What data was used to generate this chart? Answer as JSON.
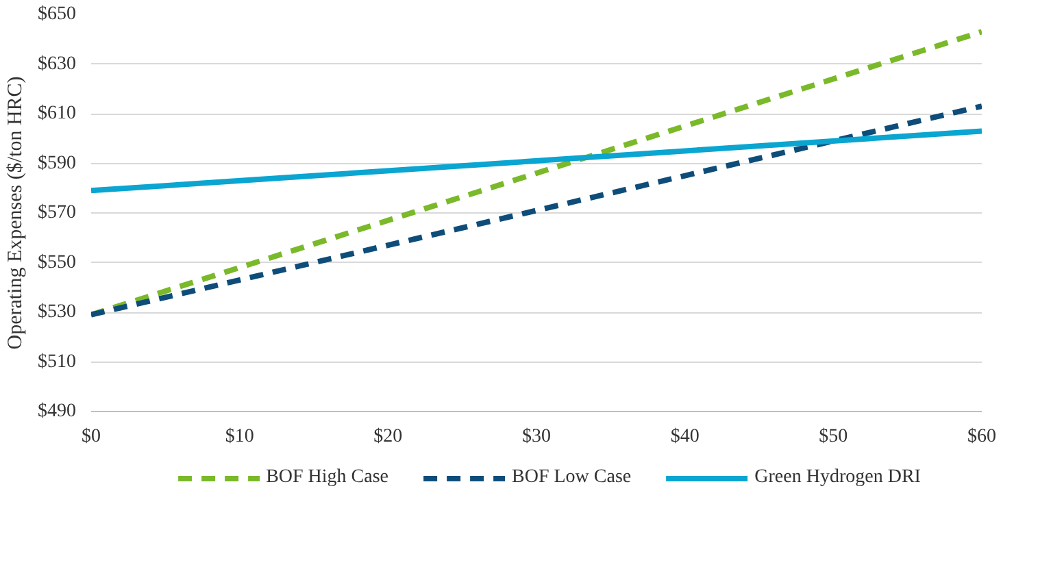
{
  "chart_data": {
    "type": "line",
    "ylabel": "Operating Expenses ($/ton HRC)",
    "x": [
      0,
      60
    ],
    "series": [
      {
        "name": "BOF High Case",
        "color": "#7ab929",
        "values": [
          529,
          643
        ],
        "line_style": "dashed"
      },
      {
        "name": "BOF Low Case",
        "color": "#0e4d7a",
        "values": [
          529,
          613
        ],
        "line_style": "dashed"
      },
      {
        "name": "Green Hydrogen DRI",
        "color": "#0aa5d0",
        "values": [
          579,
          603
        ],
        "line_style": "solid"
      }
    ],
    "xlim": [
      0,
      60
    ],
    "xticks": [
      {
        "value": 0,
        "label": "$0"
      },
      {
        "value": 10,
        "label": "$10"
      },
      {
        "value": 20,
        "label": "$20"
      },
      {
        "value": 30,
        "label": "$30"
      },
      {
        "value": 40,
        "label": "$40"
      },
      {
        "value": 50,
        "label": "$50"
      },
      {
        "value": 60,
        "label": "$60"
      }
    ],
    "ylim": [
      490,
      650
    ],
    "yticks": [
      {
        "value": 490,
        "label": "$490"
      },
      {
        "value": 510,
        "label": "$510"
      },
      {
        "value": 530,
        "label": "$530"
      },
      {
        "value": 550,
        "label": "$550"
      },
      {
        "value": 570,
        "label": "$570"
      },
      {
        "value": 590,
        "label": "$590"
      },
      {
        "value": 610,
        "label": "$610"
      },
      {
        "value": 630,
        "label": "$630"
      },
      {
        "value": 650,
        "label": "$650"
      }
    ],
    "grid": "y",
    "legend": "bottom",
    "marker": "none"
  }
}
